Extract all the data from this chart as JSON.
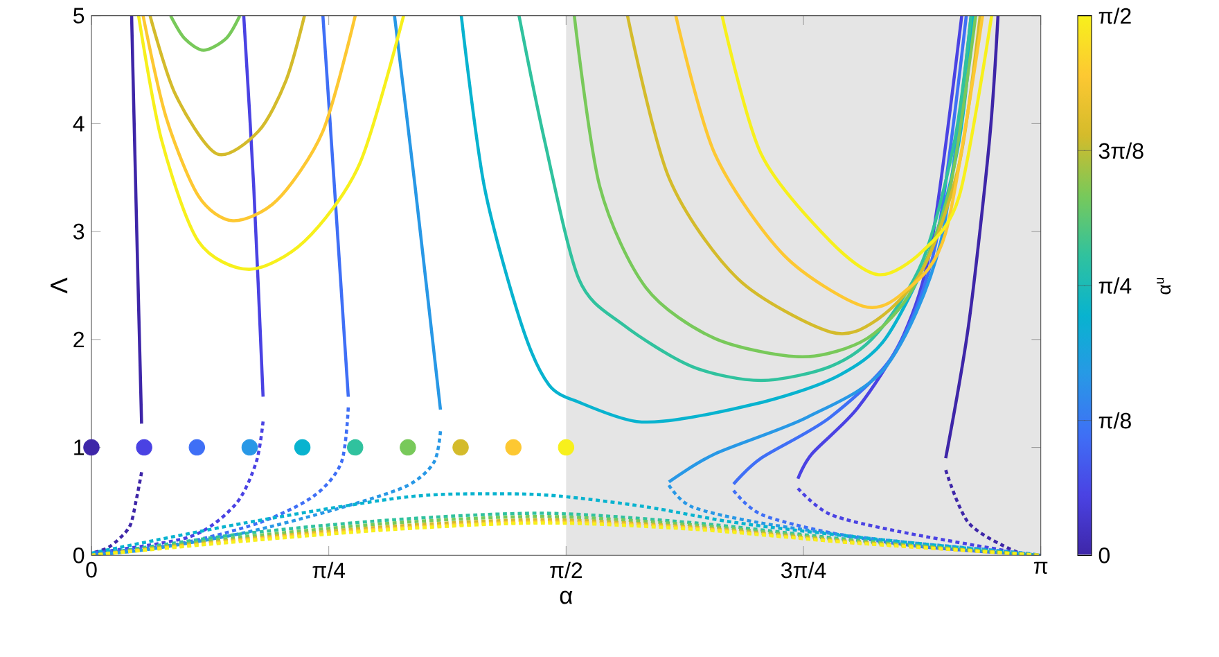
{
  "chart_data": {
    "type": "line",
    "xlabel": "α",
    "ylabel": "Λ",
    "clabel": "α$^{u}$",
    "xlim": [
      0,
      3.1416
    ],
    "ylim": [
      0,
      5
    ],
    "xticks": [
      0,
      {
        "value": 0.7854,
        "label": "π/4"
      },
      {
        "value": 1.5708,
        "label": "π/2"
      },
      {
        "value": 2.3562,
        "label": "3π/4"
      },
      {
        "value": 3.1416,
        "label": "π"
      }
    ],
    "yticks": [
      0,
      1,
      2,
      3,
      4,
      5
    ],
    "clim": [
      0,
      1.5708
    ],
    "cticks": [
      0,
      {
        "value": 0.3927,
        "label": "π/8"
      },
      {
        "value": 0.7854,
        "label": "π/4"
      },
      {
        "value": 1.1781,
        "label": "3π/8"
      },
      {
        "value": 1.5708,
        "label": "π/2"
      }
    ],
    "bands": [
      {
        "axis": "x",
        "from": 1.5708,
        "to": 3.1416,
        "color": "#e5e5e5"
      }
    ],
    "grid": false,
    "series": [
      {
        "color": "#3e26a8",
        "line_style": "solid",
        "x": [
          0.133,
          0.15,
          0.166
        ],
        "values": [
          5,
          3.0,
          1.22
        ]
      },
      {
        "color": "#3e26a8",
        "line_style": "dotted",
        "x": [
          0.166,
          0.148,
          0.125,
          0.06,
          0
        ],
        "values": [
          0.77,
          0.51,
          0.26,
          0.08,
          0.02
        ]
      },
      {
        "color": "#3e26a8",
        "line_style": "solid",
        "x": [
          3.0,
          2.972,
          2.903,
          2.827
        ],
        "values": [
          5,
          3.85,
          2.14,
          0.9
        ]
      },
      {
        "color": "#3e26a8",
        "line_style": "dotted",
        "x": [
          2.827,
          2.903,
          3.055,
          3.1416
        ],
        "values": [
          0.79,
          0.3,
          0.04,
          0
        ]
      },
      {
        "color": "#4a42e3",
        "line_style": "solid",
        "x": [
          0.504,
          0.537,
          0.568
        ],
        "values": [
          5,
          3.42,
          1.47
        ]
      },
      {
        "color": "#4a42e3",
        "line_style": "dotted",
        "x": [
          0.568,
          0.545,
          0.476,
          0.324,
          0
        ],
        "values": [
          1.24,
          0.86,
          0.47,
          0.17,
          0.02
        ]
      },
      {
        "color": "#4a42e3",
        "line_style": "solid",
        "x": [
          2.88,
          2.781,
          2.689,
          2.537,
          2.384,
          2.338
        ],
        "values": [
          5,
          2.91,
          2.05,
          1.37,
          0.94,
          0.71
        ]
      },
      {
        "color": "#4a42e3",
        "line_style": "dotted",
        "x": [
          2.338,
          2.445,
          2.674,
          3.055,
          3.1416
        ],
        "values": [
          0.62,
          0.38,
          0.22,
          0.03,
          0
        ]
      },
      {
        "color": "#3f6ff6",
        "line_style": "solid",
        "x": [
          0.766,
          0.804,
          0.85
        ],
        "values": [
          5,
          3.42,
          1.47
        ]
      },
      {
        "color": "#3f6ff6",
        "line_style": "dotted",
        "x": [
          0.85,
          0.827,
          0.736,
          0.553,
          0.278,
          0
        ],
        "values": [
          1.37,
          0.86,
          0.55,
          0.3,
          0.1,
          0.02
        ]
      },
      {
        "color": "#3f6ff6",
        "line_style": "solid",
        "x": [
          2.895,
          2.796,
          2.659,
          2.445,
          2.216,
          2.125
        ],
        "values": [
          5,
          2.91,
          1.88,
          1.28,
          0.9,
          0.66
        ]
      },
      {
        "color": "#3f6ff6",
        "line_style": "dotted",
        "x": [
          2.125,
          2.216,
          2.445,
          2.75,
          3.1416
        ],
        "values": [
          0.6,
          0.38,
          0.21,
          0.08,
          0
        ]
      },
      {
        "color": "#2898e6",
        "line_style": "solid",
        "x": [
          1.003,
          1.071,
          1.155
        ],
        "values": [
          5,
          3.42,
          1.35
        ]
      },
      {
        "color": "#2898e6",
        "line_style": "dotted",
        "x": [
          1.155,
          1.133,
          1.041,
          0.812,
          0.507,
          0.2,
          0
        ],
        "values": [
          1.15,
          0.86,
          0.64,
          0.43,
          0.21,
          0.06,
          0
        ]
      },
      {
        "color": "#2898e6",
        "line_style": "solid",
        "x": [
          2.911,
          2.811,
          2.63,
          2.369,
          2.063,
          1.911
        ],
        "values": [
          5,
          2.91,
          1.75,
          1.28,
          0.94,
          0.68
        ]
      },
      {
        "color": "#2898e6",
        "line_style": "dotted",
        "x": [
          1.911,
          1.987,
          2.216,
          2.598,
          3.055,
          3.1416
        ],
        "values": [
          0.65,
          0.45,
          0.3,
          0.15,
          0.03,
          0
        ]
      },
      {
        "color": "#08b3cf",
        "line_style": "solid",
        "x": [
          1.224,
          1.3,
          1.423,
          1.514,
          1.621,
          1.804,
          1.987,
          2.262,
          2.476,
          2.628,
          2.781,
          2.872,
          2.918
        ],
        "values": [
          5,
          3.42,
          2.14,
          1.58,
          1.41,
          1.24,
          1.28,
          1.45,
          1.67,
          2.01,
          2.86,
          3.85,
          5
        ]
      },
      {
        "color": "#08b3cf",
        "line_style": "dotted",
        "x": [
          0,
          0.507,
          1.041,
          1.346,
          1.545,
          1.835,
          2.14,
          2.598,
          3.1416
        ],
        "values": [
          0.02,
          0.3,
          0.54,
          0.57,
          0.55,
          0.45,
          0.3,
          0.15,
          0
        ]
      },
      {
        "color": "#30c29e",
        "line_style": "solid",
        "x": [
          1.415,
          1.499,
          1.613,
          1.758,
          1.987,
          2.216,
          2.445,
          2.598,
          2.751,
          2.857,
          2.911
        ],
        "values": [
          5,
          3.85,
          2.56,
          2.14,
          1.75,
          1.62,
          1.75,
          2.05,
          2.73,
          3.85,
          5
        ]
      },
      {
        "color": "#30c29e",
        "line_style": "dotted",
        "x": [
          0,
          0.5,
          1.0,
          1.5,
          2.0,
          2.5,
          3.1416
        ],
        "values": [
          0,
          0.2,
          0.33,
          0.39,
          0.3,
          0.15,
          0
        ]
      },
      {
        "color": "#78c95a",
        "line_style": "solid",
        "x": [
          0.262,
          0.308,
          0.372,
          0.446,
          0.491
        ],
        "values": [
          5,
          4.79,
          4.68,
          4.79,
          5
        ]
      },
      {
        "color": "#78c95a",
        "line_style": "solid",
        "x": [
          1.598,
          1.682,
          1.835,
          2.063,
          2.353,
          2.567,
          2.72,
          2.842,
          2.926
        ],
        "values": [
          5,
          3.42,
          2.48,
          2.01,
          1.84,
          2.01,
          2.48,
          3.42,
          5
        ]
      },
      {
        "color": "#78c95a",
        "line_style": "dotted",
        "x": [
          0,
          0.5,
          1.0,
          1.5,
          2.0,
          2.5,
          3.1416
        ],
        "values": [
          0,
          0.17,
          0.3,
          0.36,
          0.28,
          0.14,
          0
        ]
      },
      {
        "color": "#d4bb2b",
        "line_style": "solid",
        "x": [
          0.194,
          0.278,
          0.415,
          0.553,
          0.644,
          0.705
        ],
        "values": [
          5,
          4.27,
          3.72,
          3.93,
          4.4,
          5
        ]
      },
      {
        "color": "#d4bb2b",
        "line_style": "solid",
        "x": [
          1.774,
          1.911,
          2.14,
          2.445,
          2.598,
          2.751,
          2.872,
          2.941
        ],
        "values": [
          5,
          3.5,
          2.56,
          2.07,
          2.18,
          2.65,
          3.63,
          5
        ]
      },
      {
        "color": "#d4bb2b",
        "line_style": "dotted",
        "x": [
          0,
          0.5,
          1.0,
          1.5,
          2.0,
          2.5,
          3.1416
        ],
        "values": [
          0,
          0.15,
          0.27,
          0.33,
          0.26,
          0.13,
          0
        ]
      },
      {
        "color": "#fdc832",
        "line_style": "solid",
        "x": [
          0.171,
          0.247,
          0.354,
          0.468,
          0.614,
          0.766,
          0.873
        ],
        "values": [
          5,
          4.06,
          3.33,
          3.1,
          3.29,
          3.93,
          5
        ]
      },
      {
        "color": "#fdc832",
        "line_style": "solid",
        "x": [
          1.934,
          2.063,
          2.292,
          2.552,
          2.689,
          2.827,
          2.949
        ],
        "values": [
          5,
          3.72,
          2.78,
          2.31,
          2.44,
          2.99,
          5
        ]
      },
      {
        "color": "#fdc832",
        "line_style": "dotted",
        "x": [
          0,
          0.5,
          1.0,
          1.5,
          2.0,
          2.5,
          3.1416
        ],
        "values": [
          0,
          0.14,
          0.25,
          0.31,
          0.25,
          0.12,
          0
        ]
      },
      {
        "color": "#f7f01c",
        "line_style": "solid",
        "x": [
          0.156,
          0.232,
          0.354,
          0.522,
          0.705,
          0.888,
          1.033
        ],
        "values": [
          5,
          3.85,
          2.91,
          2.65,
          2.91,
          3.63,
          5
        ]
      },
      {
        "color": "#f7f01c",
        "line_style": "solid",
        "x": [
          2.087,
          2.216,
          2.445,
          2.605,
          2.751,
          2.872,
          2.979
        ],
        "values": [
          5,
          3.72,
          2.91,
          2.6,
          2.82,
          3.33,
          5
        ]
      },
      {
        "color": "#f7f01c",
        "line_style": "dotted",
        "x": [
          0,
          0.5,
          1.0,
          1.5,
          2.0,
          2.5,
          3.1416
        ],
        "values": [
          0,
          0.13,
          0.24,
          0.3,
          0.24,
          0.12,
          0
        ]
      },
      {
        "type": "scatter",
        "x": [
          0,
          0.1745,
          0.349,
          0.5236,
          0.6981,
          0.8727,
          1.0472,
          1.2217,
          1.3963,
          1.5708
        ],
        "values": [
          1,
          1,
          1,
          1,
          1,
          1,
          1,
          1,
          1,
          1
        ],
        "colors": [
          "#3e26a8",
          "#4a42e3",
          "#3f6ff6",
          "#2898e6",
          "#08b3cf",
          "#30c29e",
          "#78c95a",
          "#d4bb2b",
          "#fdc832",
          "#f7f01c"
        ]
      }
    ]
  }
}
